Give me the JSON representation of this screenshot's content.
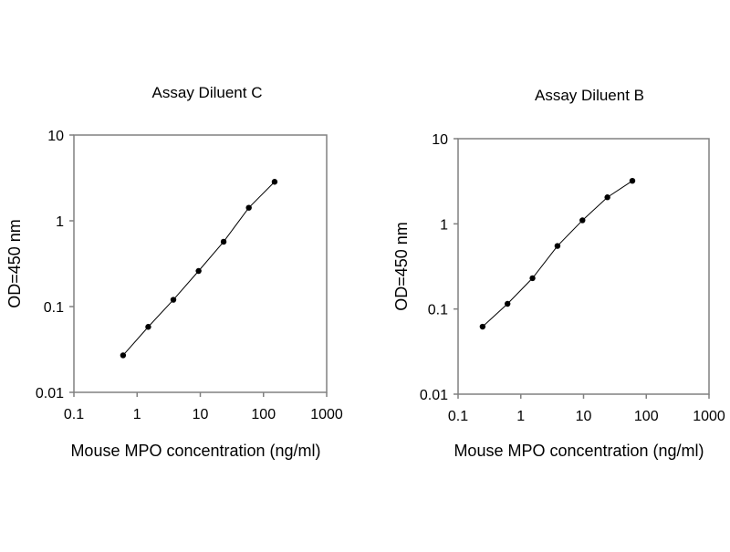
{
  "chart_data": [
    {
      "type": "line",
      "title": "Assay Diluent C",
      "xlabel": "Mouse MPO concentration (ng/ml)",
      "ylabel": "OD=450 nm",
      "xscale": "log",
      "yscale": "log",
      "xlim": [
        0.1,
        1000
      ],
      "ylim": [
        0.01,
        10
      ],
      "xticks": [
        "0.1",
        "1",
        "10",
        "100",
        "1000"
      ],
      "yticks": [
        "0.01",
        "0.1",
        "1",
        "10"
      ],
      "x": [
        0.6,
        1.5,
        3.75,
        9.4,
        23.4,
        58.6,
        150
      ],
      "y": [
        0.027,
        0.058,
        0.12,
        0.26,
        0.57,
        1.42,
        2.85
      ],
      "grid": false,
      "series_color": "#000000",
      "axis_color": "#808080"
    },
    {
      "type": "line",
      "title": "Assay Diluent B",
      "xlabel": "Mouse MPO concentration (ng/ml)",
      "ylabel": "OD=450 nm",
      "xscale": "log",
      "yscale": "log",
      "xlim": [
        0.1,
        1000
      ],
      "ylim": [
        0.01,
        10
      ],
      "xticks": [
        "0.1",
        "1",
        "10",
        "100",
        "1000"
      ],
      "yticks": [
        "0.01",
        "0.1",
        "1",
        "10"
      ],
      "x": [
        0.246,
        0.614,
        1.536,
        3.84,
        9.6,
        24,
        60
      ],
      "y": [
        0.062,
        0.115,
        0.23,
        0.55,
        1.1,
        2.05,
        3.2
      ],
      "grid": false,
      "series_color": "#000000",
      "axis_color": "#808080"
    }
  ]
}
